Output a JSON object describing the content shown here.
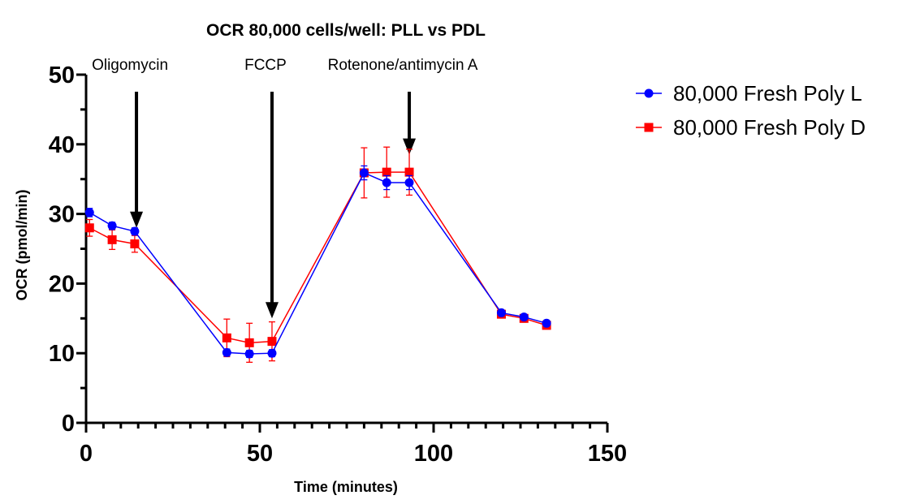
{
  "chart_data": {
    "type": "line",
    "title": "OCR 80,000 cells/well: PLL vs PDL",
    "xlabel": "Time (minutes)",
    "ylabel": "OCR (pmol/min)",
    "xlim": [
      0,
      150
    ],
    "ylim": [
      0,
      50
    ],
    "x_ticks": [
      "0",
      "50",
      "100",
      "150"
    ],
    "y_ticks": [
      "0",
      "10",
      "20",
      "30",
      "40",
      "50"
    ],
    "grid": false,
    "legend_position": "right",
    "annotations": [
      {
        "label": "Oligomycin",
        "x": 14.5,
        "arrow_to_y": 28
      },
      {
        "label": "FCCP",
        "x": 53.5,
        "arrow_to_y": 15
      },
      {
        "label": "Rotenone/antimycin A",
        "x": 93,
        "arrow_to_y": 38.5
      }
    ],
    "series": [
      {
        "name": "80,000 Fresh Poly L",
        "color": "#0000ff",
        "marker": "circle",
        "points": [
          {
            "x": 1,
            "y": 30.2,
            "err": 0.6
          },
          {
            "x": 7.5,
            "y": 28.3,
            "err": 0.5
          },
          {
            "x": 14,
            "y": 27.5,
            "err": 0.5
          },
          {
            "x": 40.5,
            "y": 10.1,
            "err": 0.5
          },
          {
            "x": 47,
            "y": 9.9,
            "err": 0.5
          },
          {
            "x": 53.5,
            "y": 10.0,
            "err": 0.5
          },
          {
            "x": 80,
            "y": 35.9,
            "err": 1.0
          },
          {
            "x": 86.5,
            "y": 34.5,
            "err": 1.0
          },
          {
            "x": 93,
            "y": 34.5,
            "err": 1.0
          },
          {
            "x": 119.5,
            "y": 15.8,
            "err": 0.3
          },
          {
            "x": 126,
            "y": 15.2,
            "err": 0.3
          },
          {
            "x": 132.5,
            "y": 14.3,
            "err": 0.3
          }
        ]
      },
      {
        "name": "80,000 Fresh Poly D",
        "color": "#ff0000",
        "marker": "square",
        "points": [
          {
            "x": 1,
            "y": 28.0,
            "err": 1.2
          },
          {
            "x": 7.5,
            "y": 26.3,
            "err": 1.4
          },
          {
            "x": 14,
            "y": 25.7,
            "err": 1.2
          },
          {
            "x": 40.5,
            "y": 12.2,
            "err": 2.7
          },
          {
            "x": 47,
            "y": 11.5,
            "err": 2.8
          },
          {
            "x": 53.5,
            "y": 11.7,
            "err": 2.8
          },
          {
            "x": 80,
            "y": 35.9,
            "err": 3.6
          },
          {
            "x": 86.5,
            "y": 36.0,
            "err": 3.6
          },
          {
            "x": 93,
            "y": 36.0,
            "err": 3.3
          },
          {
            "x": 119.5,
            "y": 15.6,
            "err": 0.3
          },
          {
            "x": 126,
            "y": 15.0,
            "err": 0.3
          },
          {
            "x": 132.5,
            "y": 14.0,
            "err": 0.3
          }
        ]
      }
    ]
  }
}
